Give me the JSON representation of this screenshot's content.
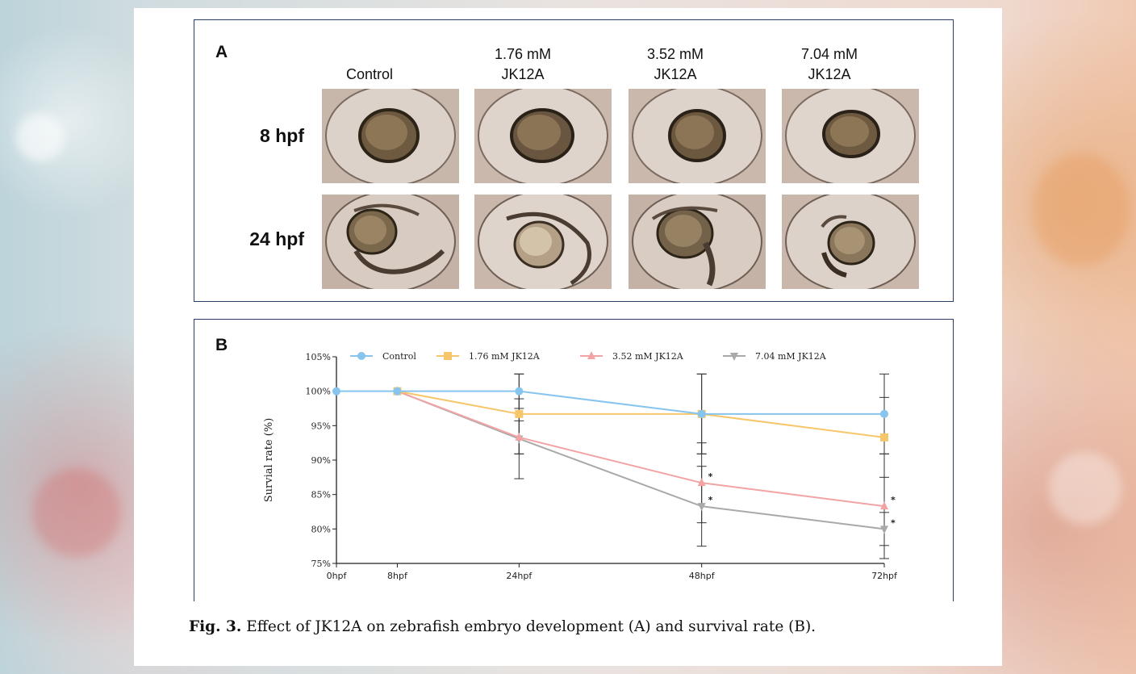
{
  "figure": {
    "panel_a": {
      "letter": "A",
      "columns": [
        {
          "line1": "",
          "line2": "Control"
        },
        {
          "line1": "1.76 mM",
          "line2": "JK12A"
        },
        {
          "line1": "3.52 mM",
          "line2": "JK12A"
        },
        {
          "line1": "7.04 mM",
          "line2": "JK12A"
        }
      ],
      "rows": [
        "8 hpf",
        "24 hpf"
      ]
    },
    "panel_b": {
      "letter": "B"
    },
    "caption": {
      "label": "Fig. 3.",
      "text": "Effect of JK12A on zebrafish embryo development (A) and survival rate (B)."
    }
  },
  "chart_data": {
    "type": "line",
    "title": "",
    "xlabel": "",
    "ylabel": "Survial rate (%)",
    "categories": [
      "0hpf",
      "8hpf",
      "24hpf",
      "48hpf",
      "72hpf"
    ],
    "x_hours": [
      0,
      8,
      24,
      48,
      72
    ],
    "ylim": [
      75,
      105
    ],
    "yticks": [
      "75%",
      "80%",
      "85%",
      "90%",
      "95%",
      "100%",
      "105%"
    ],
    "ytick_values": [
      75,
      80,
      85,
      90,
      95,
      100,
      105
    ],
    "legend_position": "top",
    "grid": false,
    "series": [
      {
        "name": "Control",
        "color": "#87c4ee",
        "marker": "circle",
        "x": [
          0,
          8,
          24,
          48,
          72
        ],
        "values": [
          100,
          100,
          100,
          96.7,
          96.7
        ],
        "error": [
          0,
          0,
          2.5,
          5.8,
          5.8
        ],
        "sig": [
          "",
          "",
          "",
          "",
          ""
        ]
      },
      {
        "name": "1.76 mM JK12A",
        "color": "#f7c66a",
        "marker": "square",
        "x": [
          8,
          24,
          48,
          72
        ],
        "values": [
          100,
          96.7,
          96.7,
          93.3
        ],
        "error": [
          0,
          5.8,
          5.8,
          5.8
        ],
        "sig": [
          "",
          "",
          "",
          ""
        ]
      },
      {
        "name": "3.52 mM JK12A",
        "color": "#f2a3a3",
        "marker": "triangle",
        "x": [
          8,
          24,
          48,
          72
        ],
        "values": [
          100,
          93.3,
          86.7,
          83.3
        ],
        "error": [
          0,
          2.4,
          5.8,
          7.6
        ],
        "sig": [
          "",
          "",
          "*",
          "*"
        ]
      },
      {
        "name": "7.04 mM JK12A",
        "color": "#a9a9a9",
        "marker": "triangle-down",
        "x": [
          8,
          24,
          48,
          72
        ],
        "values": [
          100,
          93.1,
          83.3,
          80.0
        ],
        "error": [
          0,
          5.8,
          5.8,
          2.4
        ],
        "sig": [
          "",
          "",
          "*",
          "*"
        ]
      }
    ]
  }
}
